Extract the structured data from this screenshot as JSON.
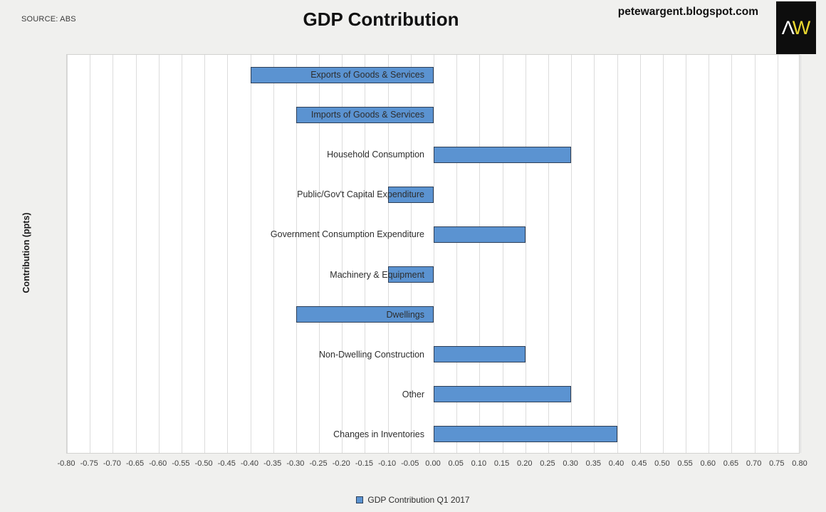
{
  "page": {
    "source_note": "SOURCE: ABS",
    "title": "GDP Contribution",
    "website": "petewargent.blogspot.com",
    "logo_text_1": "Λ",
    "logo_text_2": "W"
  },
  "chart_data": {
    "type": "bar",
    "orientation": "horizontal",
    "title": "GDP Contribution",
    "axis_label": "Contribution (ppts)",
    "categories": [
      "Exports of Goods & Services",
      "Imports of Goods & Services",
      "Household Consumption",
      "Public/Gov't Capital Expenditure",
      "Government Consumption Expenditure",
      "Machinery & Equipment",
      "Dwellings",
      "Non-Dwelling Construction",
      "Other",
      "Changes in Inventories"
    ],
    "values": [
      -0.4,
      -0.3,
      0.3,
      -0.1,
      0.2,
      -0.1,
      -0.3,
      0.2,
      0.3,
      0.4
    ],
    "xlim": [
      -0.8,
      0.8
    ],
    "xtick_step": 0.05,
    "xtick_labels": [
      "-0.80",
      "-0.75",
      "-0.70",
      "-0.65",
      "-0.60",
      "-0.55",
      "-0.50",
      "-0.45",
      "-0.40",
      "-0.35",
      "-0.30",
      "-0.25",
      "-0.20",
      "-0.15",
      "-0.10",
      "-0.05",
      "0.00",
      "0.05",
      "0.10",
      "0.15",
      "0.20",
      "0.25",
      "0.30",
      "0.35",
      "0.40",
      "0.45",
      "0.50",
      "0.55",
      "0.60",
      "0.65",
      "0.70",
      "0.75",
      "0.80"
    ],
    "grid": "vertical",
    "legend": {
      "position": "bottom",
      "label": "GDP Contribution Q1 2017"
    },
    "colors": {
      "bar_fill": "#5b93d1",
      "bar_border": "#2e3f57",
      "plot_bg": "#ffffff",
      "gridline": "#dcdcdc",
      "page_bg": "#f0f0ee"
    }
  }
}
